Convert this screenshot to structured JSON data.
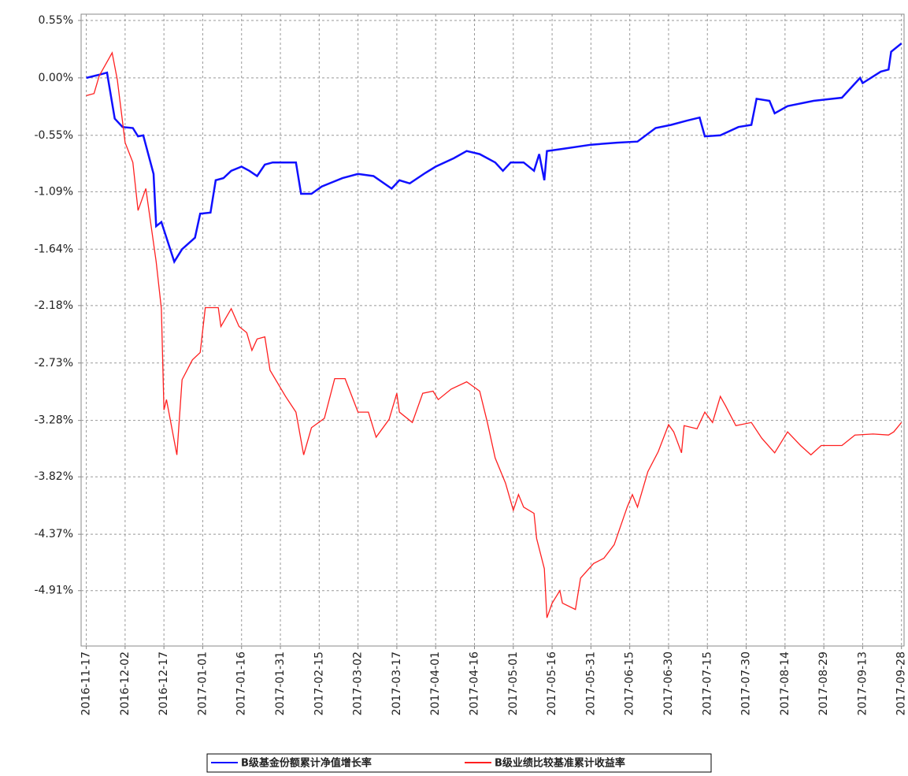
{
  "chart_data": {
    "type": "line",
    "xlim": [
      "2016-11-15",
      "2017-09-29"
    ],
    "xticks": [
      "2016-11-17",
      "2016-12-02",
      "2016-12-17",
      "2017-01-01",
      "2017-01-16",
      "2017-01-31",
      "2017-02-15",
      "2017-03-02",
      "2017-03-17",
      "2017-04-01",
      "2017-04-16",
      "2017-05-01",
      "2017-05-16",
      "2017-05-31",
      "2017-06-15",
      "2017-06-30",
      "2017-07-15",
      "2017-07-30",
      "2017-08-14",
      "2017-08-29",
      "2017-09-13",
      "2017-09-28"
    ],
    "ylim": [
      -5.44,
      0.61
    ],
    "yticks": [
      {
        "value": 0.55,
        "label": "0.55%"
      },
      {
        "value": 0,
        "label": "0.00%"
      },
      {
        "value": -0.55,
        "label": "-0.55%"
      },
      {
        "value": -1.09,
        "label": "-1.09%"
      },
      {
        "value": -1.64,
        "label": "-1.64%"
      },
      {
        "value": -2.18,
        "label": "-2.18%"
      },
      {
        "value": -2.73,
        "label": "-2.73%"
      },
      {
        "value": -3.28,
        "label": "-3.28%"
      },
      {
        "value": -3.82,
        "label": "-3.82%"
      },
      {
        "value": -4.37,
        "label": "-4.37%"
      },
      {
        "value": -4.91,
        "label": "-4.91%"
      }
    ],
    "grid": true,
    "series": [
      {
        "name": "B级基金份额累计净值增长率",
        "color": "#1010ff",
        "x": [
          "2016-11-17",
          "2016-11-22",
          "2016-11-25",
          "2016-11-28",
          "2016-12-01",
          "2016-12-05",
          "2016-12-07",
          "2016-12-09",
          "2016-12-13",
          "2016-12-14",
          "2016-12-16",
          "2016-12-21",
          "2016-12-24",
          "2016-12-29",
          "2016-12-31",
          "2017-01-04",
          "2017-01-06",
          "2017-01-09",
          "2017-01-12",
          "2017-01-16",
          "2017-01-19",
          "2017-01-22",
          "2017-01-25",
          "2017-01-28",
          "2017-02-06",
          "2017-02-08",
          "2017-02-12",
          "2017-02-16",
          "2017-02-20",
          "2017-02-24",
          "2017-03-02",
          "2017-03-08",
          "2017-03-15",
          "2017-03-18",
          "2017-03-22",
          "2017-03-28",
          "2017-04-01",
          "2017-04-08",
          "2017-04-13",
          "2017-04-18",
          "2017-04-24",
          "2017-04-27",
          "2017-04-30",
          "2017-05-05",
          "2017-05-09",
          "2017-05-11",
          "2017-05-13",
          "2017-05-14",
          "2017-05-20",
          "2017-05-31",
          "2017-06-10",
          "2017-06-18",
          "2017-06-25",
          "2017-07-01",
          "2017-07-07",
          "2017-07-12",
          "2017-07-14",
          "2017-07-20",
          "2017-07-27",
          "2017-08-01",
          "2017-08-03",
          "2017-08-08",
          "2017-08-10",
          "2017-08-15",
          "2017-08-25",
          "2017-09-05",
          "2017-09-12",
          "2017-09-13",
          "2017-09-20",
          "2017-09-23",
          "2017-09-24",
          "2017-09-28"
        ],
        "values": [
          0.0,
          0.03,
          0.05,
          -0.39,
          -0.47,
          -0.48,
          -0.56,
          -0.55,
          -0.92,
          -1.42,
          -1.38,
          -1.76,
          -1.64,
          -1.53,
          -1.3,
          -1.29,
          -0.98,
          -0.96,
          -0.89,
          -0.85,
          -0.89,
          -0.94,
          -0.83,
          -0.81,
          -0.81,
          -1.11,
          -1.11,
          -1.04,
          -1.0,
          -0.96,
          -0.92,
          -0.94,
          -1.06,
          -0.98,
          -1.01,
          -0.91,
          -0.85,
          -0.77,
          -0.7,
          -0.73,
          -0.81,
          -0.89,
          -0.81,
          -0.81,
          -0.89,
          -0.73,
          -0.98,
          -0.7,
          -0.68,
          -0.64,
          -0.62,
          -0.61,
          -0.48,
          -0.45,
          -0.41,
          -0.38,
          -0.56,
          -0.55,
          -0.47,
          -0.45,
          -0.2,
          -0.22,
          -0.34,
          -0.27,
          -0.22,
          -0.19,
          0.0,
          -0.05,
          0.06,
          0.08,
          0.25,
          0.33
        ]
      },
      {
        "name": "B级业绩比较基准累计收益率",
        "color": "#ff2020",
        "x": [
          "2016-11-17",
          "2016-11-20",
          "2016-11-22",
          "2016-11-27",
          "2016-11-29",
          "2016-12-02",
          "2016-12-05",
          "2016-12-07",
          "2016-12-10",
          "2016-12-14",
          "2016-12-16",
          "2016-12-17",
          "2016-12-18",
          "2016-12-22",
          "2016-12-24",
          "2016-12-28",
          "2016-12-31",
          "2017-01-02",
          "2017-01-07",
          "2017-01-08",
          "2017-01-12",
          "2017-01-15",
          "2017-01-18",
          "2017-01-20",
          "2017-01-22",
          "2017-01-25",
          "2017-01-27",
          "2017-02-02",
          "2017-02-06",
          "2017-02-09",
          "2017-02-12",
          "2017-02-17",
          "2017-02-21",
          "2017-02-25",
          "2017-03-02",
          "2017-03-06",
          "2017-03-09",
          "2017-03-14",
          "2017-03-17",
          "2017-03-18",
          "2017-03-23",
          "2017-03-27",
          "2017-03-31",
          "2017-04-02",
          "2017-04-07",
          "2017-04-13",
          "2017-04-18",
          "2017-04-21",
          "2017-04-24",
          "2017-04-28",
          "2017-05-01",
          "2017-05-03",
          "2017-05-05",
          "2017-05-09",
          "2017-05-10",
          "2017-05-13",
          "2017-05-14",
          "2017-05-16",
          "2017-05-19",
          "2017-05-20",
          "2017-05-25",
          "2017-05-27",
          "2017-06-01",
          "2017-06-05",
          "2017-06-09",
          "2017-06-14",
          "2017-06-16",
          "2017-06-18",
          "2017-06-22",
          "2017-06-26",
          "2017-06-30",
          "2017-07-02",
          "2017-07-05",
          "2017-07-06",
          "2017-07-11",
          "2017-07-14",
          "2017-07-17",
          "2017-07-20",
          "2017-07-22",
          "2017-07-26",
          "2017-08-01",
          "2017-08-05",
          "2017-08-10",
          "2017-08-15",
          "2017-08-20",
          "2017-08-24",
          "2017-08-28",
          "2017-09-05",
          "2017-09-10",
          "2017-09-17",
          "2017-09-23",
          "2017-09-25",
          "2017-09-28"
        ],
        "values": [
          -0.17,
          -0.15,
          0.02,
          0.24,
          -0.02,
          -0.62,
          -0.81,
          -1.27,
          -1.06,
          -1.76,
          -2.21,
          -3.18,
          -3.08,
          -3.61,
          -2.89,
          -2.7,
          -2.63,
          -2.2,
          -2.2,
          -2.38,
          -2.21,
          -2.38,
          -2.44,
          -2.61,
          -2.5,
          -2.48,
          -2.8,
          -3.05,
          -3.2,
          -3.61,
          -3.35,
          -3.26,
          -2.88,
          -2.88,
          -3.2,
          -3.2,
          -3.44,
          -3.27,
          -3.02,
          -3.2,
          -3.3,
          -3.02,
          -3.0,
          -3.08,
          -2.98,
          -2.91,
          -3.0,
          -3.3,
          -3.64,
          -3.88,
          -4.14,
          -3.99,
          -4.11,
          -4.17,
          -4.41,
          -4.7,
          -5.17,
          -5.03,
          -4.91,
          -5.03,
          -5.09,
          -4.79,
          -4.65,
          -4.6,
          -4.47,
          -4.11,
          -3.99,
          -4.11,
          -3.77,
          -3.58,
          -3.32,
          -3.39,
          -3.59,
          -3.33,
          -3.36,
          -3.2,
          -3.3,
          -3.05,
          -3.14,
          -3.33,
          -3.3,
          -3.45,
          -3.59,
          -3.39,
          -3.52,
          -3.61,
          -3.52,
          -3.52,
          -3.42,
          -3.41,
          -3.42,
          -3.39,
          -3.3
        ]
      }
    ]
  }
}
